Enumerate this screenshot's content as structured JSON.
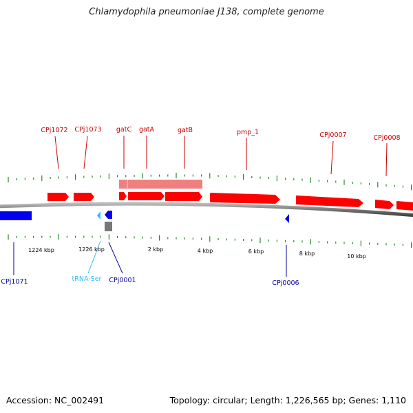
{
  "title": "Chlamydophila pneumoniae J138, complete genome",
  "footer": {
    "accession": "Accession: NC_002491",
    "stats": "Topology: circular; Length: 1,226,565 bp; Genes: 1,110"
  },
  "colors": {
    "forward_gene": "#ff0000",
    "forward_gene_light": "#f08080",
    "reverse_gene": "#0000ee",
    "trna": "#33bbff",
    "other_feature": "#777777",
    "tick": "#228822",
    "backbone": "#888888"
  },
  "scale_labels": [
    "1224 kbp",
    "1226 kbp",
    "2 kbp",
    "4 kbp",
    "6 kbp",
    "8 kbp",
    "10 kbp"
  ],
  "forward_labels": [
    "CPj1072",
    "CPj1073",
    "gatC",
    "gatA",
    "gatB",
    "pmp_1",
    "CPj0007",
    "CPj0008"
  ],
  "reverse_labels": [
    "CPj1071",
    "tRNA-Ser",
    "CPj0001",
    "CPj0006"
  ]
}
